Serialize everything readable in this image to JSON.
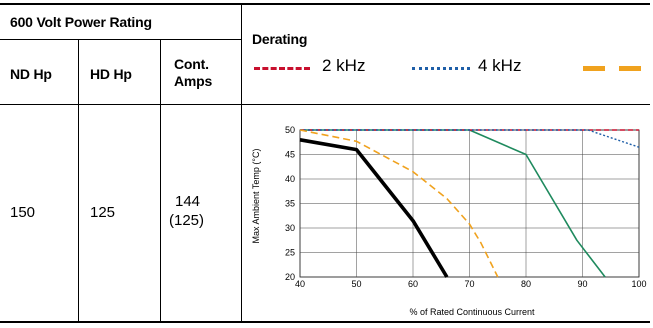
{
  "table": {
    "rating_header": "600 Volt Power Rating",
    "derating_header": "Derating",
    "columns": [
      "ND Hp",
      "HD Hp",
      "Cont. Amps"
    ],
    "row": {
      "nd_hp": "150",
      "hd_hp": "125",
      "amps_line1": "144",
      "amps_line2": "(125)"
    }
  },
  "legend": [
    {
      "label": "2 kHz",
      "style": "dashed",
      "color": "#c8102e"
    },
    {
      "label": "4 kHz",
      "style": "dotted",
      "color": "#1f5fa8"
    },
    {
      "label": "",
      "style": "dashed-wide",
      "color": "#f0a21e"
    }
  ],
  "colors": {
    "kHz8": "#f0a21e",
    "black_series": "#000000",
    "green_series": "#1f8a5e"
  },
  "chart_data": {
    "type": "line",
    "xlabel": "% of Rated Continuous Current",
    "ylabel": "Max Ambient Temp (°C)",
    "xlim": [
      40,
      100
    ],
    "ylim": [
      20,
      50
    ],
    "x_ticks": [
      40,
      50,
      60,
      70,
      80,
      90,
      100
    ],
    "y_ticks": [
      20,
      25,
      30,
      35,
      40,
      45,
      50
    ],
    "grid": true,
    "series": [
      {
        "name": "2 kHz",
        "style": "dashed",
        "color": "#c8102e",
        "points": [
          [
            40,
            50
          ],
          [
            100,
            50
          ]
        ]
      },
      {
        "name": "4 kHz",
        "style": "dotted",
        "color": "#1f5fa8",
        "points": [
          [
            40,
            50
          ],
          [
            91,
            50
          ],
          [
            100,
            46.5
          ]
        ]
      },
      {
        "name": "",
        "style": "dashed-wide",
        "color": "#f0a21e",
        "points": [
          [
            40,
            50
          ],
          [
            50,
            47.7
          ],
          [
            60,
            41.5
          ],
          [
            66,
            36
          ],
          [
            70,
            30.8
          ],
          [
            72,
            27
          ],
          [
            75,
            20
          ]
        ]
      },
      {
        "name": "",
        "style": "solid-thick",
        "color": "#000000",
        "points": [
          [
            40,
            48
          ],
          [
            50,
            46
          ],
          [
            60,
            31.5
          ],
          [
            66,
            20
          ]
        ]
      },
      {
        "name": "",
        "style": "solid",
        "color": "#1f8a5e",
        "points": [
          [
            40,
            50
          ],
          [
            70,
            50
          ],
          [
            80,
            45
          ],
          [
            89,
            27.5
          ],
          [
            94,
            20
          ]
        ]
      }
    ]
  }
}
